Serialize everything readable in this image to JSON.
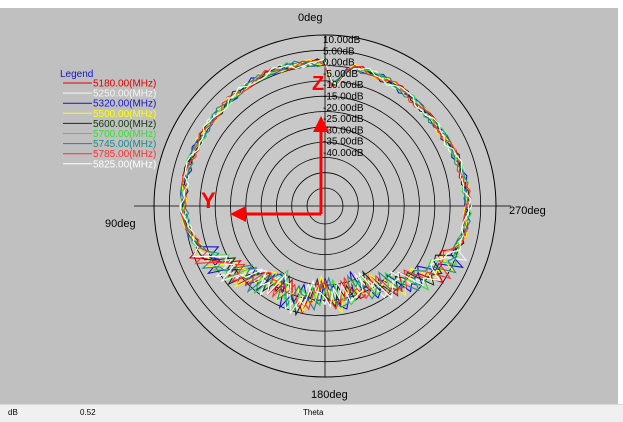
{
  "status_bar": {
    "unit": "dB",
    "value": "0.52",
    "axis": "Theta"
  },
  "chart_data": {
    "type": "polar-line",
    "angle_labels": [
      "0deg",
      "90deg",
      "180deg",
      "270deg"
    ],
    "radial_labels": [
      "10.00dB",
      "5.00dB",
      "0.00dB",
      "-5.00dB",
      "-10.00dB",
      "-15.00dB",
      "-20.00dB",
      "-25.00dB",
      "-30.00dB",
      "-35.00dB",
      "-40.00dB"
    ],
    "radial_range_db": [
      -45,
      10
    ],
    "legend_title": "Legend",
    "legend_placement": "top-left",
    "series": [
      {
        "name": "5180.00(MHz)",
        "color": "#e00000"
      },
      {
        "name": "5250.00(MHz)",
        "color": "#f4f4f4"
      },
      {
        "name": "5320.00(MHz)",
        "color": "#1515c8"
      },
      {
        "name": "5500.00(MHz)",
        "color": "#ffff00"
      },
      {
        "name": "5600.00(MHz)",
        "color": "#103810"
      },
      {
        "name": "5700.00(MHz)",
        "color": "#30e030"
      },
      {
        "name": "5745.00(MHz)",
        "color": "#1c8a8a"
      },
      {
        "name": "5785.00(MHz)",
        "color": "#ff3030"
      },
      {
        "name": "5825.00(MHz)",
        "color": "#ffffff"
      }
    ],
    "pattern_db": [
      [
        0,
        1
      ],
      [
        10,
        1.3
      ],
      [
        20,
        1.4
      ],
      [
        30,
        1.2
      ],
      [
        40,
        0.8
      ],
      [
        50,
        0.6
      ],
      [
        60,
        0.5
      ],
      [
        70,
        0.8
      ],
      [
        80,
        0.8
      ],
      [
        90,
        0.6
      ],
      [
        100,
        -0.3
      ],
      [
        110,
        -3
      ],
      [
        120,
        -7
      ],
      [
        130,
        -11
      ],
      [
        140,
        -14
      ],
      [
        150,
        -17
      ],
      [
        160,
        -13
      ],
      [
        170,
        -15
      ],
      [
        180,
        -18
      ],
      [
        190,
        -14
      ],
      [
        200,
        -17
      ],
      [
        210,
        -15
      ],
      [
        220,
        -12
      ],
      [
        230,
        -8
      ],
      [
        240,
        -4
      ],
      [
        250,
        -1
      ],
      [
        260,
        0.6
      ],
      [
        270,
        0.8
      ],
      [
        280,
        0.5
      ],
      [
        290,
        0.1
      ],
      [
        300,
        -0.6
      ],
      [
        310,
        -0.9
      ],
      [
        320,
        -0.6
      ],
      [
        330,
        -0.1
      ],
      [
        340,
        0.2
      ],
      [
        350,
        0.4
      ],
      [
        352,
        -3
      ],
      [
        356,
        -7
      ],
      [
        358,
        -4
      ],
      [
        360,
        1
      ]
    ],
    "annotations": [
      {
        "label": "Z",
        "color": "#ff0000"
      },
      {
        "label": "Y",
        "color": "#ff0000"
      }
    ]
  }
}
